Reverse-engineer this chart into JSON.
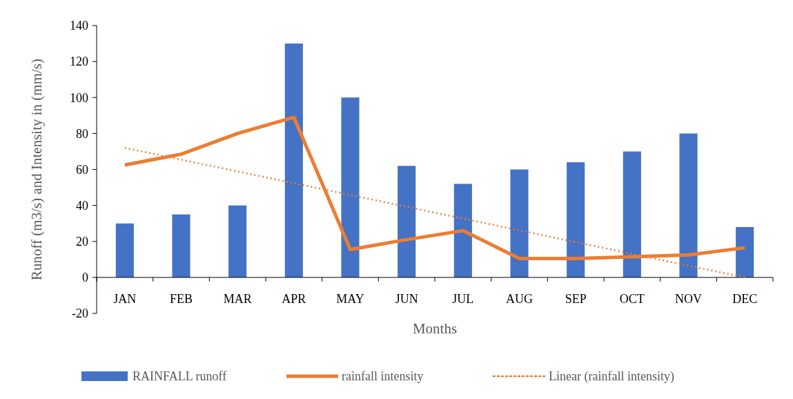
{
  "chart_data": {
    "type": "bar",
    "xlabel": "Months",
    "ylabel": "Runoff (m3/s) and Intensity in (mm/s)",
    "categories": [
      "JAN",
      "FEB",
      "MAR",
      "APR",
      "MAY",
      "JUN",
      "JUL",
      "AUG",
      "SEP",
      "OCT",
      "NOV",
      "DEC"
    ],
    "series": [
      {
        "name": "RAINFALL runoff",
        "color": "#4472c4",
        "values": [
          30,
          35,
          40,
          130,
          100,
          62,
          52,
          60,
          64,
          70,
          80,
          28
        ]
      },
      {
        "name": "rainfall intensity",
        "type": "line",
        "color": "#ed7d31",
        "line_style": "solid",
        "values": [
          62.5,
          68.5,
          80,
          89,
          15.5,
          21,
          26,
          10.5,
          10.5,
          11.5,
          12.5,
          16.5
        ]
      },
      {
        "name": "Linear (rainfall intensity)",
        "type": "line",
        "color": "#ed7d31",
        "line_style": "dotted",
        "x": [
          "JAN",
          "DEC"
        ],
        "values": [
          72,
          0
        ]
      }
    ],
    "ylim": [
      -20,
      140
    ],
    "yticks": [
      -20,
      0,
      20,
      40,
      60,
      80,
      100,
      120,
      140
    ],
    "grid": false,
    "legend": "bottom",
    "marker": "none"
  }
}
